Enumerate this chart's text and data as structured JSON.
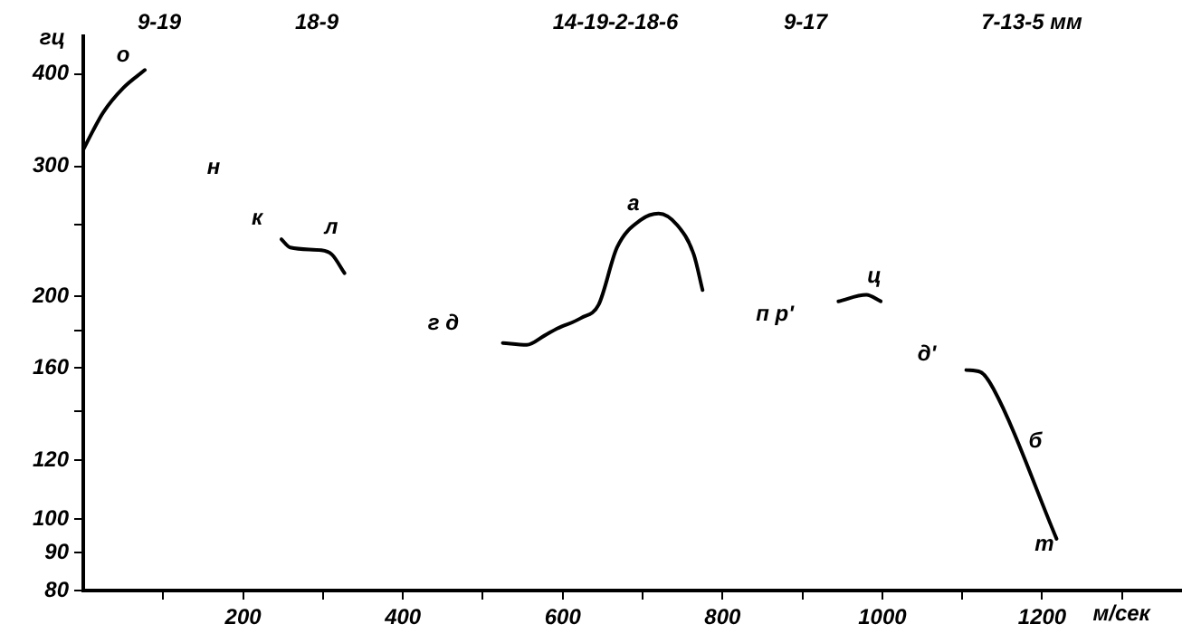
{
  "chart_data": {
    "type": "line",
    "xlabel": "м/сек",
    "ylabel": "гц",
    "log": "y",
    "grid": false,
    "legend": false,
    "marker": "none",
    "line_style": "solid",
    "xlim": [
      0,
      1375
    ],
    "xticks": [
      {
        "value": 100,
        "label": null
      },
      200,
      {
        "value": 300,
        "label": null
      },
      400,
      {
        "value": 500,
        "label": null
      },
      600,
      {
        "value": 700,
        "label": null
      },
      800,
      {
        "value": 900,
        "label": null
      },
      1000,
      {
        "value": 1100,
        "label": null
      },
      1200,
      {
        "value": 1300,
        "label": null
      }
    ],
    "ylim": [
      80,
      450
    ],
    "yticks": [
      80,
      90,
      100,
      120,
      {
        "value": 140,
        "label": null
      },
      160,
      {
        "value": 180,
        "label": null
      },
      200,
      {
        "value": 250,
        "label": null
      },
      300,
      400
    ],
    "series": [
      {
        "color": "#000000",
        "x": [
          0,
          12,
          25,
          50,
          77
        ],
        "values": [
          316,
          335,
          355,
          383,
          405
        ]
      },
      {
        "color": "#000000",
        "x": [
          248,
          259,
          298,
          311,
          327
        ],
        "values": [
          239,
          233,
          231,
          228,
          215
        ]
      },
      {
        "color": "#000000",
        "x": [
          525,
          555,
          577,
          593,
          623,
          645,
          668,
          698,
          720,
          743,
          764,
          775
        ],
        "values": [
          173,
          172,
          177,
          181,
          187,
          195,
          233,
          254,
          259,
          250,
          228,
          204
        ]
      },
      {
        "color": "#000000",
        "x": [
          945,
          980,
          998
        ],
        "values": [
          197,
          201,
          197
        ]
      },
      {
        "color": "#000000",
        "x": [
          1105,
          1123,
          1139,
          1218
        ],
        "values": [
          159,
          158,
          150,
          94
        ]
      }
    ],
    "annotations": [
      "9-19",
      "18-9",
      "14-19-2-18-6",
      "9-17",
      "7-13-5 мм",
      "о",
      "н",
      "к",
      "л",
      "г д",
      "а",
      "п р'",
      "ц",
      "д'",
      "б",
      "т"
    ]
  }
}
